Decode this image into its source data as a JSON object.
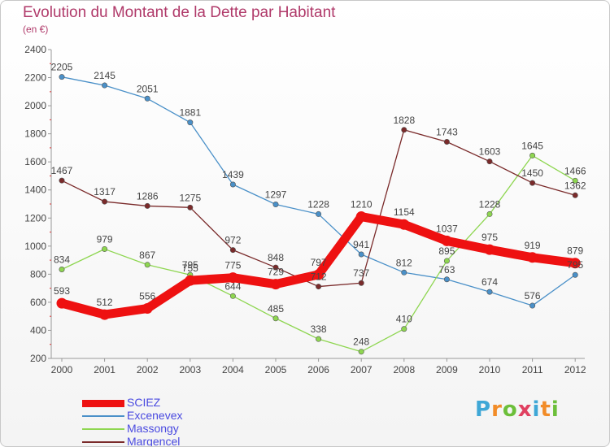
{
  "title": "Evolution du Montant de la Dette par Habitant",
  "subtitle": "(en €)",
  "logo": {
    "letters": [
      "P",
      "r",
      "o",
      "x",
      "i",
      "t",
      "i"
    ],
    "colors": [
      "#3fa7d6",
      "#f28c28",
      "#6cbf3a",
      "#e04060",
      "#3fa7d6",
      "#f28c28",
      "#6cbf3a"
    ]
  },
  "chart_data": {
    "type": "line",
    "x": [
      "2000",
      "2001",
      "2002",
      "2003",
      "2004",
      "2005",
      "2006",
      "2007",
      "2008",
      "2009",
      "2010",
      "2011",
      "2012"
    ],
    "ylim": [
      200,
      2400
    ],
    "yticks": [
      "200",
      "400",
      "600",
      "800",
      "1000",
      "1200",
      "1400",
      "1600",
      "1800",
      "2000",
      "2200",
      "2400"
    ],
    "grid": false,
    "legend_position": "bottom-left",
    "series": [
      {
        "name": "SCIEZ",
        "color": "#ee1111",
        "values": [
          593,
          512,
          556,
          755,
          775,
          729,
          797,
          1210,
          1154,
          1037,
          975,
          919,
          879
        ],
        "labels": [
          "593",
          "512",
          "556",
          "755",
          "775",
          "729",
          "797",
          "1210",
          "1154",
          "1037",
          "975",
          "919",
          "879"
        ]
      },
      {
        "name": "Excenevex",
        "color": "#4a90c8",
        "values": [
          2205,
          2145,
          2051,
          1881,
          1439,
          1297,
          1228,
          941,
          812,
          763,
          674,
          576,
          795
        ],
        "labels": [
          "2205",
          "2145",
          "2051",
          "1881",
          "1439",
          "1297",
          "1228",
          "941",
          "812",
          "763",
          "674",
          "576",
          "795"
        ]
      },
      {
        "name": "Massongy",
        "color": "#8ed650",
        "values": [
          834,
          979,
          867,
          795,
          644,
          485,
          338,
          248,
          410,
          895,
          1228,
          1645,
          1466
        ],
        "labels": [
          "834",
          "979",
          "867",
          "795",
          "644",
          "485",
          "338",
          "248",
          "410",
          "895",
          "1228",
          "1645",
          "1466"
        ]
      },
      {
        "name": "Margencel",
        "color": "#7a2a2a",
        "values": [
          1467,
          1317,
          1286,
          1275,
          972,
          848,
          712,
          737,
          1828,
          1743,
          1603,
          1450,
          1362
        ],
        "labels": [
          "1467",
          "1317",
          "1286",
          "1275",
          "972",
          "848",
          "712",
          "737",
          "1828",
          "1743",
          "1603",
          "1450",
          "1362"
        ]
      }
    ]
  }
}
